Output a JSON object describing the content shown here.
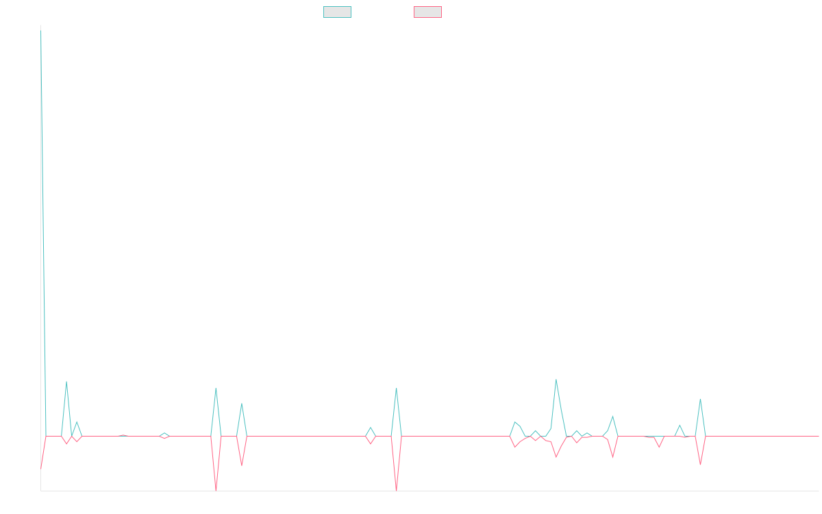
{
  "chart_data": {
    "type": "line",
    "title": "",
    "xlabel": "",
    "ylabel": "",
    "ylim": [
      -5,
      37.5
    ],
    "grid": false,
    "legend": "top-center",
    "series": [
      {
        "color": "#4bc0c0",
        "fill": "#e6e6e6",
        "values": [
          37,
          0,
          0,
          0,
          0,
          5,
          0,
          1.3,
          0,
          0,
          0,
          0,
          0,
          0,
          0,
          0,
          0,
          0,
          0,
          0,
          0,
          0,
          0,
          0,
          0.3,
          0,
          0,
          0,
          0,
          0,
          0,
          0,
          0,
          0,
          4.4,
          0,
          0,
          0,
          0,
          3,
          0,
          0,
          0,
          0,
          0,
          0,
          0,
          0,
          0,
          0,
          0,
          0,
          0,
          0,
          0,
          0,
          0,
          0,
          0,
          0,
          0,
          0,
          0,
          0,
          0.8,
          0,
          0,
          0,
          0,
          4.4,
          0,
          0,
          0,
          0,
          0,
          0,
          0,
          0,
          0,
          0,
          0,
          0,
          0,
          0,
          0,
          0,
          0,
          0,
          0,
          0,
          0,
          0,
          1.3,
          0.9,
          0,
          0,
          0.5,
          0,
          0,
          0.7,
          5.2,
          2.4,
          0,
          0,
          0.5,
          0,
          0.3,
          0,
          0,
          0,
          0.5,
          1.8,
          0,
          0,
          0,
          0,
          0,
          0,
          0,
          0,
          0,
          0,
          0,
          0,
          1,
          0,
          0,
          0,
          3.4,
          0,
          0,
          0,
          0,
          0,
          0,
          0,
          0,
          0,
          0,
          0,
          0,
          0,
          0,
          0,
          0,
          0,
          0,
          0,
          0,
          0,
          0,
          0
        ]
      },
      {
        "color": "#ff6384",
        "fill": "#e6e6e6",
        "values": [
          -3,
          0,
          0,
          0,
          0,
          -0.7,
          0,
          -0.5,
          0,
          0,
          0,
          0,
          0,
          0,
          0,
          0,
          0.1,
          0,
          0,
          0,
          0,
          0,
          0,
          0,
          -0.2,
          0,
          0,
          0,
          0,
          0,
          0,
          0,
          0,
          0,
          -5,
          0,
          0,
          0,
          0,
          -2.7,
          0,
          0,
          0,
          0,
          0,
          0,
          0,
          0,
          0,
          0,
          0,
          0,
          0,
          0,
          0,
          0,
          0,
          0,
          0,
          0,
          0,
          0,
          0,
          0,
          -0.7,
          0,
          0,
          0,
          0,
          -5,
          0,
          0,
          0,
          0,
          0,
          0,
          0,
          0,
          0,
          0,
          0,
          0,
          0,
          0,
          0,
          0,
          0,
          0,
          0,
          0,
          0,
          0,
          -1,
          -0.5,
          -0.2,
          0,
          -0.4,
          0,
          -0.4,
          -0.5,
          -1.9,
          -0.9,
          -0.1,
          0,
          -0.6,
          -0.1,
          -0.1,
          0,
          0,
          0,
          -0.3,
          -1.9,
          0,
          0,
          0,
          0,
          0,
          0,
          -0.1,
          -0.1,
          -1,
          0,
          0,
          0,
          0,
          -0.1,
          0,
          0,
          -2.6,
          0,
          0,
          0,
          0,
          0,
          0,
          0,
          0,
          0,
          0,
          0,
          0,
          0,
          0,
          0,
          0,
          0,
          0,
          0,
          0,
          0,
          0,
          0
        ]
      }
    ]
  }
}
